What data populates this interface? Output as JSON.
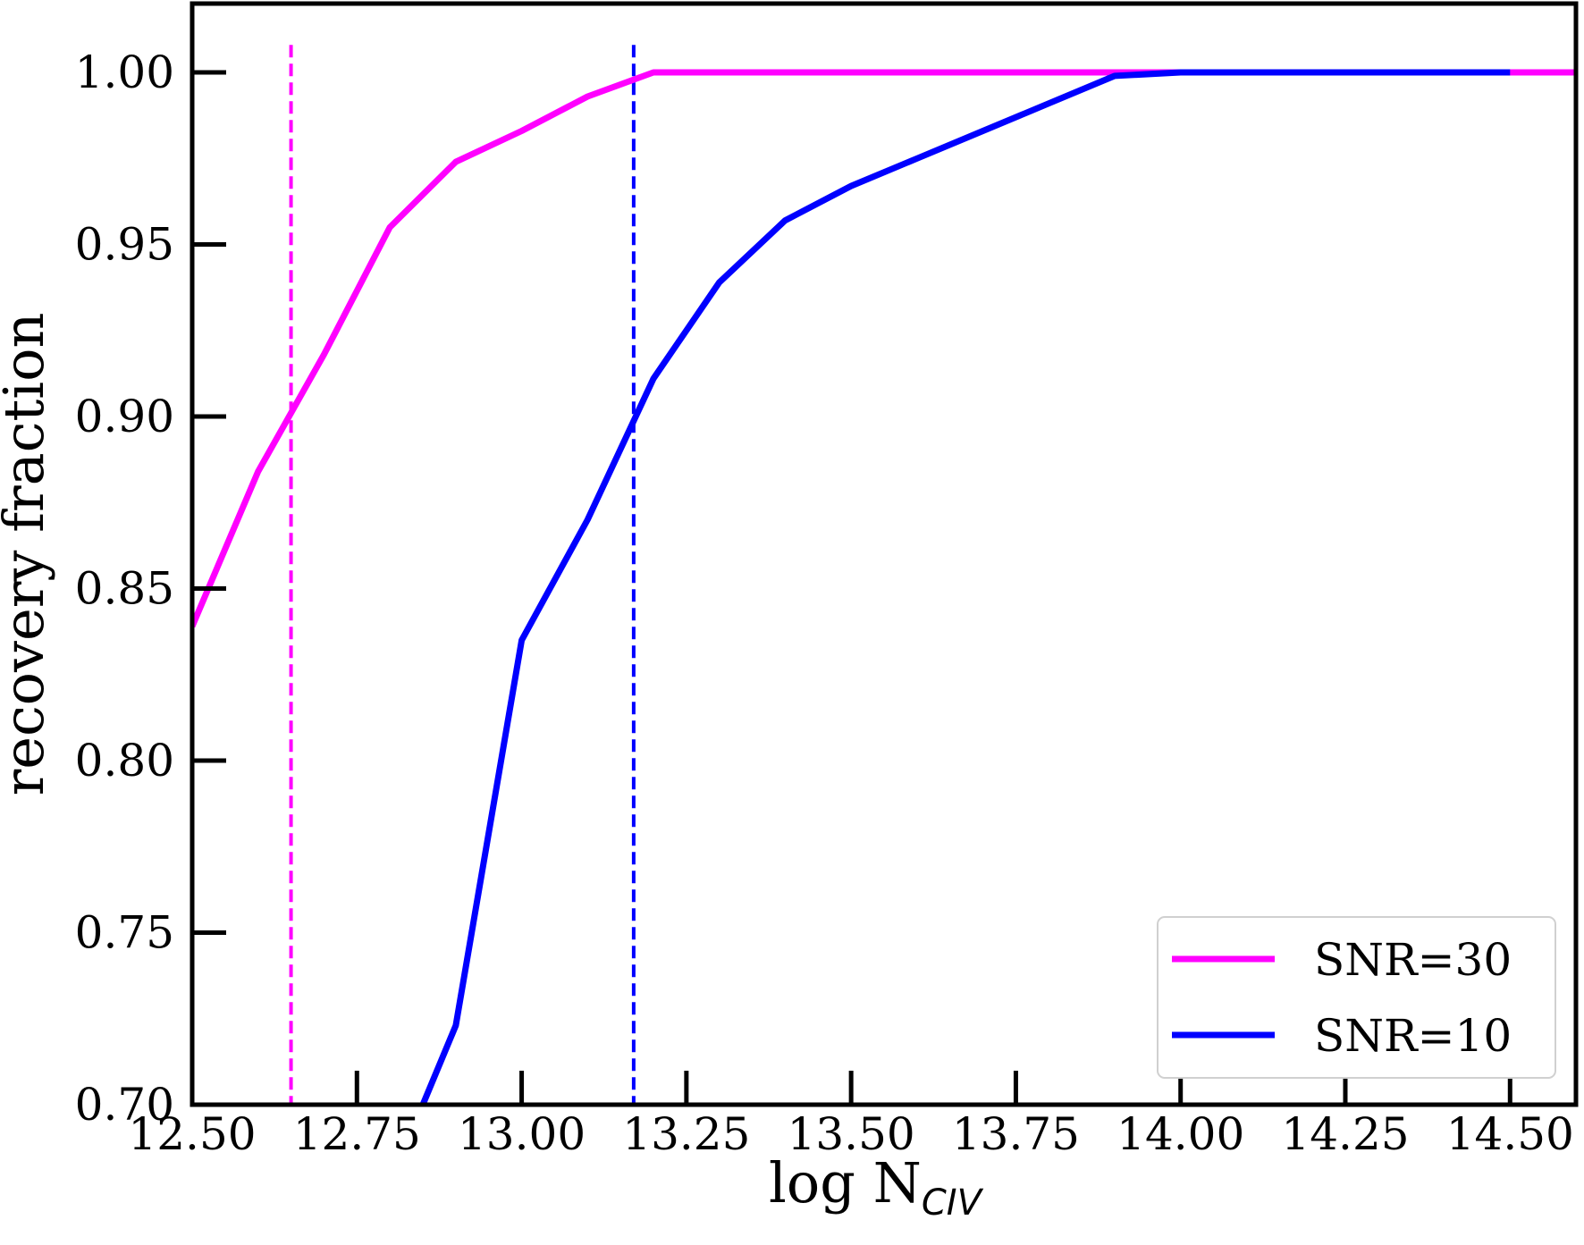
{
  "chart_data": {
    "type": "line",
    "xlabel": "log N",
    "xlabel_subscript": "CIV",
    "ylabel": "recovery fraction",
    "xlim": [
      12.5,
      14.6
    ],
    "ylim": [
      0.7,
      1.02
    ],
    "grid": false,
    "legend_position": "lower-right",
    "x_ticks": [
      "12.50",
      "12.75",
      "13.00",
      "13.25",
      "13.50",
      "13.75",
      "14.00",
      "14.25",
      "14.50"
    ],
    "x_tick_values": [
      12.5,
      12.75,
      13.0,
      13.25,
      13.5,
      13.75,
      14.0,
      14.25,
      14.5
    ],
    "y_ticks": [
      "0.70",
      "0.75",
      "0.80",
      "0.85",
      "0.90",
      "0.95",
      "1.00"
    ],
    "y_tick_values": [
      0.7,
      0.75,
      0.8,
      0.85,
      0.9,
      0.95,
      1.0
    ],
    "series": [
      {
        "name": "SNR=30",
        "color": "#ff00ff",
        "x": [
          12.5,
          12.6,
          12.7,
          12.8,
          12.9,
          13.0,
          13.1,
          13.2,
          13.3,
          13.4,
          13.5,
          13.6,
          13.7,
          13.8,
          13.9,
          14.0,
          14.1,
          14.2,
          14.3,
          14.4,
          14.5,
          14.6
        ],
        "y": [
          0.839,
          0.884,
          0.918,
          0.955,
          0.974,
          0.983,
          0.993,
          1.0,
          1.0,
          1.0,
          1.0,
          1.0,
          1.0,
          1.0,
          1.0,
          1.0,
          1.0,
          1.0,
          1.0,
          1.0,
          1.0,
          1.0
        ]
      },
      {
        "name": "SNR=10",
        "color": "#0000ff",
        "x": [
          12.85,
          12.9,
          13.0,
          13.1,
          13.2,
          13.3,
          13.4,
          13.5,
          13.6,
          13.7,
          13.8,
          13.9,
          14.0,
          14.1,
          14.2,
          14.3,
          14.4,
          14.5
        ],
        "y": [
          0.7,
          0.723,
          0.835,
          0.87,
          0.911,
          0.939,
          0.957,
          0.967,
          0.975,
          0.983,
          0.991,
          0.999,
          1.0,
          1.0,
          1.0,
          1.0,
          1.0,
          1.0
        ]
      }
    ],
    "vlines": [
      {
        "x": 12.65,
        "color": "#ff00ff",
        "style": "dashed"
      },
      {
        "x": 13.17,
        "color": "#0000ff",
        "style": "dashed"
      }
    ]
  }
}
